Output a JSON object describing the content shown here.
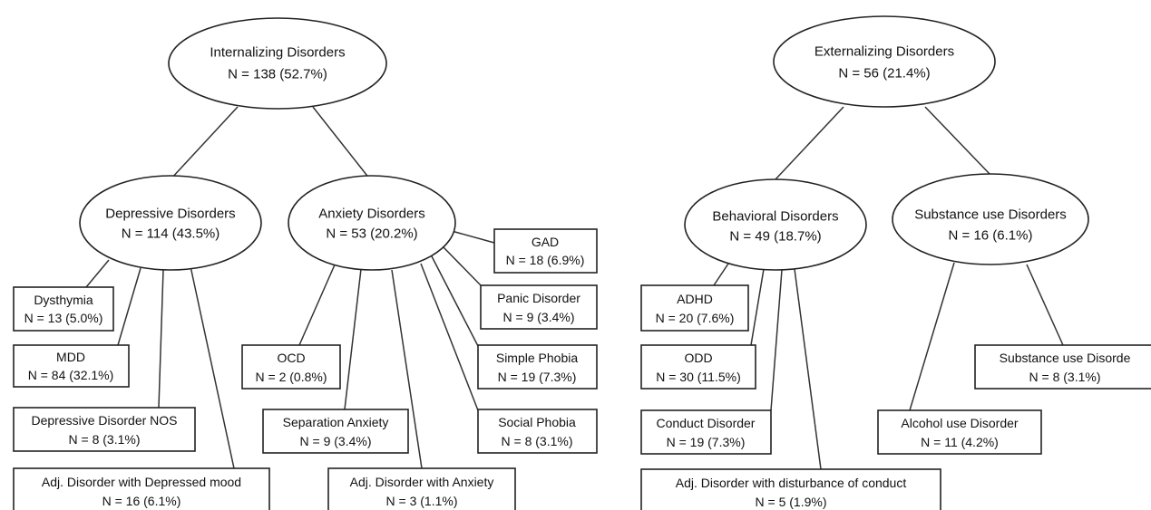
{
  "internalizing": {
    "root": {
      "title": "Internalizing Disorders",
      "count": "N = 138 (52.7%)"
    },
    "depressive": {
      "title": "Depressive Disorders",
      "count": "N = 114 (43.5%)",
      "items": [
        {
          "title": "Dysthymia",
          "count": "N = 13 (5.0%)"
        },
        {
          "title": "MDD",
          "count": "N = 84 (32.1%)"
        },
        {
          "title": "Depressive Disorder NOS",
          "count": "N = 8 (3.1%)"
        },
        {
          "title": "Adj. Disorder with Depressed mood",
          "count": "N = 16 (6.1%)"
        }
      ]
    },
    "anxiety": {
      "title": "Anxiety Disorders",
      "count": "N = 53 (20.2%)",
      "items": [
        {
          "title": "GAD",
          "count": "N = 18 (6.9%)"
        },
        {
          "title": "Panic Disorder",
          "count": "N = 9 (3.4%)"
        },
        {
          "title": "Simple Phobia",
          "count": "N = 19 (7.3%)"
        },
        {
          "title": "Social Phobia",
          "count": "N = 8 (3.1%)"
        },
        {
          "title": "OCD",
          "count": "N = 2 (0.8%)"
        },
        {
          "title": "Separation Anxiety",
          "count": "N = 9 (3.4%)"
        },
        {
          "title": "Adj. Disorder with Anxiety",
          "count": "N = 3 (1.1%)"
        }
      ]
    }
  },
  "externalizing": {
    "root": {
      "title": "Externalizing Disorders",
      "count": "N = 56 (21.4%)"
    },
    "behavioral": {
      "title": "Behavioral Disorders",
      "count": "N = 49 (18.7%)",
      "items": [
        {
          "title": "ADHD",
          "count": "N = 20 (7.6%)"
        },
        {
          "title": "ODD",
          "count": "N = 30 (11.5%)"
        },
        {
          "title": "Conduct Disorder",
          "count": "N = 19 (7.3%)"
        },
        {
          "title": "Adj. Disorder with disturbance of conduct",
          "count": "N = 5 (1.9%)"
        }
      ]
    },
    "substance": {
      "title": "Substance use Disorders",
      "count": "N = 16 (6.1%)",
      "items": [
        {
          "title": "Substance  use Disorde",
          "count": "N = 8 (3.1%)"
        },
        {
          "title": "Alcohol use Disorder",
          "count": "N = 11 (4.2%)"
        }
      ]
    }
  }
}
